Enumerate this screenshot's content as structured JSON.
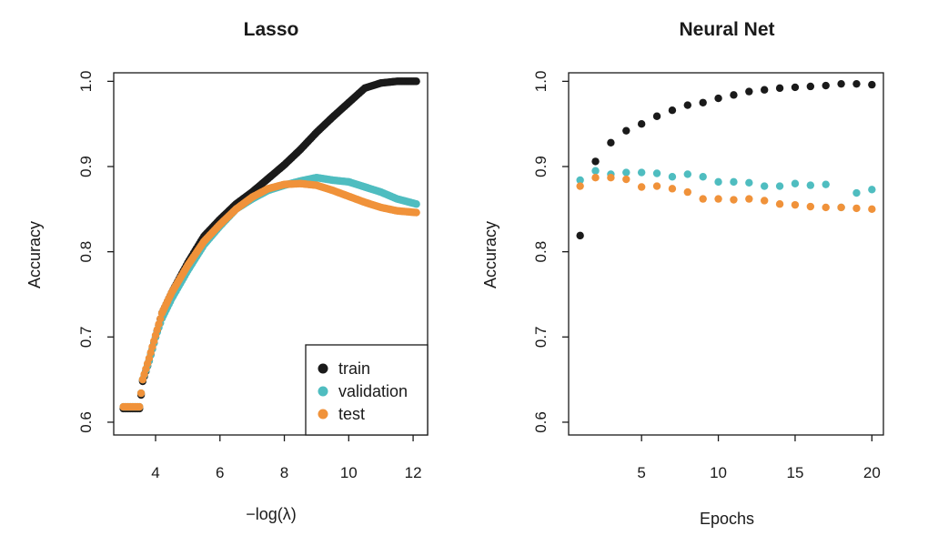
{
  "chart_data": [
    {
      "type": "scatter",
      "title": "Lasso",
      "xlabel": "−log(λ)",
      "ylabel": "Accuracy",
      "xlim": [
        2.7,
        12.45
      ],
      "ylim": [
        0.585,
        1.01
      ],
      "xticks": [
        4,
        6,
        8,
        10,
        12
      ],
      "xtick_labels": [
        "4",
        "6",
        "8",
        "10",
        "12"
      ],
      "yticks": [
        0.6,
        0.7,
        0.8,
        0.9,
        1.0
      ],
      "ytick_labels": [
        "0.6",
        "0.7",
        "0.8",
        "0.9",
        "1.0"
      ],
      "legend": {
        "position": "bottom-right",
        "entries": [
          {
            "label": "train",
            "color": "#1a1a1a"
          },
          {
            "label": "validation",
            "color": "#4fbdc0"
          },
          {
            "label": "test",
            "color": "#f0923a"
          }
        ]
      },
      "series": [
        {
          "name": "train",
          "color": "#1a1a1a",
          "points": [
            [
              3.0,
              0.616
            ],
            [
              3.5,
              0.616
            ],
            [
              3.6,
              0.648
            ],
            [
              3.8,
              0.672
            ],
            [
              4.0,
              0.7
            ],
            [
              4.2,
              0.728
            ],
            [
              4.5,
              0.752
            ],
            [
              5.0,
              0.787
            ],
            [
              5.5,
              0.818
            ],
            [
              6.0,
              0.838
            ],
            [
              6.5,
              0.856
            ],
            [
              7.0,
              0.87
            ],
            [
              7.5,
              0.886
            ],
            [
              8.0,
              0.902
            ],
            [
              8.5,
              0.92
            ],
            [
              9.0,
              0.94
            ],
            [
              9.5,
              0.958
            ],
            [
              10.0,
              0.975
            ],
            [
              10.5,
              0.992
            ],
            [
              11.0,
              0.998
            ],
            [
              11.5,
              1.0
            ],
            [
              12.1,
              1.0
            ]
          ]
        },
        {
          "name": "validation",
          "color": "#4fbdc0",
          "points": [
            [
              3.0,
              0.618
            ],
            [
              3.5,
              0.618
            ],
            [
              3.6,
              0.65
            ],
            [
              3.8,
              0.672
            ],
            [
              4.0,
              0.7
            ],
            [
              4.2,
              0.722
            ],
            [
              4.5,
              0.745
            ],
            [
              5.0,
              0.778
            ],
            [
              5.5,
              0.808
            ],
            [
              6.0,
              0.83
            ],
            [
              6.5,
              0.85
            ],
            [
              7.0,
              0.862
            ],
            [
              7.5,
              0.872
            ],
            [
              8.0,
              0.878
            ],
            [
              8.5,
              0.883
            ],
            [
              9.0,
              0.887
            ],
            [
              9.5,
              0.884
            ],
            [
              10.0,
              0.882
            ],
            [
              10.5,
              0.876
            ],
            [
              11.0,
              0.87
            ],
            [
              11.5,
              0.862
            ],
            [
              12.1,
              0.856
            ]
          ]
        },
        {
          "name": "test",
          "color": "#f0923a",
          "points": [
            [
              3.0,
              0.618
            ],
            [
              3.5,
              0.618
            ],
            [
              3.6,
              0.65
            ],
            [
              3.8,
              0.675
            ],
            [
              4.0,
              0.702
            ],
            [
              4.2,
              0.728
            ],
            [
              4.5,
              0.752
            ],
            [
              5.0,
              0.784
            ],
            [
              5.5,
              0.812
            ],
            [
              6.0,
              0.832
            ],
            [
              6.5,
              0.85
            ],
            [
              7.0,
              0.864
            ],
            [
              7.5,
              0.874
            ],
            [
              8.0,
              0.879
            ],
            [
              8.5,
              0.88
            ],
            [
              9.0,
              0.878
            ],
            [
              9.5,
              0.872
            ],
            [
              10.0,
              0.865
            ],
            [
              10.5,
              0.858
            ],
            [
              11.0,
              0.852
            ],
            [
              11.5,
              0.848
            ],
            [
              12.1,
              0.846
            ]
          ]
        }
      ]
    },
    {
      "type": "scatter",
      "title": "Neural Net",
      "xlabel": "Epochs",
      "ylabel": "Accuracy",
      "xlim": [
        0.25,
        20.75
      ],
      "ylim": [
        0.585,
        1.01
      ],
      "xticks": [
        5,
        10,
        15,
        20
      ],
      "xtick_labels": [
        "5",
        "10",
        "15",
        "20"
      ],
      "yticks": [
        0.6,
        0.7,
        0.8,
        0.9,
        1.0
      ],
      "ytick_labels": [
        "0.6",
        "0.7",
        "0.8",
        "0.9",
        "1.0"
      ],
      "series": [
        {
          "name": "train",
          "color": "#1a1a1a",
          "x": [
            1,
            2,
            3,
            4,
            5,
            6,
            7,
            8,
            9,
            10,
            11,
            12,
            13,
            14,
            15,
            16,
            17,
            18,
            19,
            20
          ],
          "y": [
            0.819,
            0.906,
            0.928,
            0.942,
            0.95,
            0.959,
            0.966,
            0.972,
            0.975,
            0.98,
            0.984,
            0.988,
            0.99,
            0.992,
            0.993,
            0.994,
            0.995,
            0.997,
            0.997,
            0.996
          ]
        },
        {
          "name": "validation",
          "color": "#4fbdc0",
          "x": [
            1,
            2,
            3,
            4,
            5,
            6,
            7,
            8,
            9,
            10,
            11,
            12,
            13,
            14,
            15,
            16,
            17,
            18,
            19,
            20
          ],
          "y": [
            0.884,
            0.895,
            0.891,
            0.893,
            0.893,
            0.892,
            0.888,
            0.891,
            0.888,
            0.882,
            0.882,
            0.881,
            0.877,
            0.877,
            0.88,
            0.878,
            0.879,
            0.852,
            0.869,
            0.873
          ]
        },
        {
          "name": "test",
          "color": "#f0923a",
          "x": [
            1,
            2,
            3,
            4,
            5,
            6,
            7,
            8,
            9,
            10,
            11,
            12,
            13,
            14,
            15,
            16,
            17,
            18,
            19,
            20
          ],
          "y": [
            0.877,
            0.887,
            0.887,
            0.885,
            0.876,
            0.877,
            0.874,
            0.87,
            0.862,
            0.862,
            0.861,
            0.862,
            0.86,
            0.856,
            0.855,
            0.853,
            0.852,
            0.852,
            0.851,
            0.85
          ]
        }
      ]
    }
  ]
}
